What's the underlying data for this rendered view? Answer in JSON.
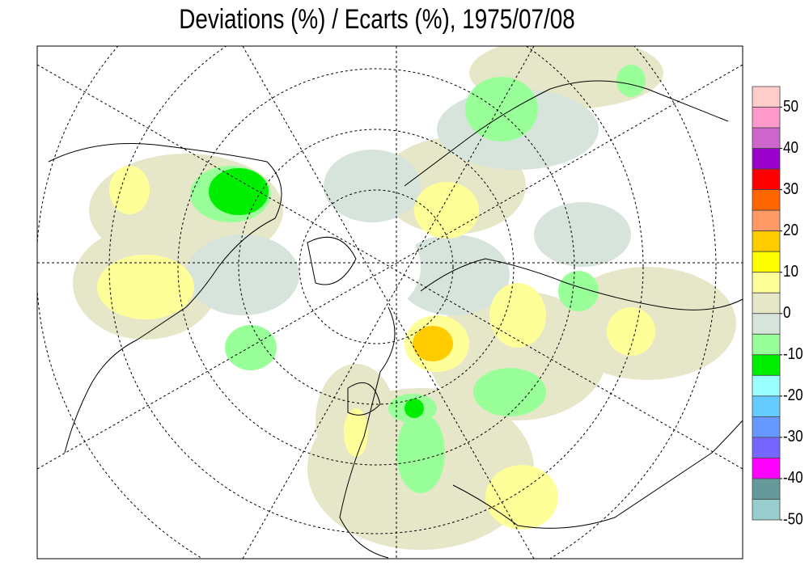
{
  "title": "Deviations (%) / Ecarts (%), 1975/07/08",
  "colorbar": {
    "colors": [
      "#ffcccc",
      "#ff99cc",
      "#cc66cc",
      "#9900cc",
      "#ff0000",
      "#ff6600",
      "#ff9966",
      "#ffcc00",
      "#ffff00",
      "#ffff99",
      "#e6e6c8",
      "#d6e4dc",
      "#99ff99",
      "#00ee00",
      "#99ffff",
      "#66ccff",
      "#6699ff",
      "#7766ff",
      "#ff00ff",
      "#669999",
      "#99cccc"
    ],
    "ticks": [
      50,
      40,
      30,
      20,
      10,
      0,
      -10,
      -20,
      -30,
      -40,
      -50
    ]
  }
}
